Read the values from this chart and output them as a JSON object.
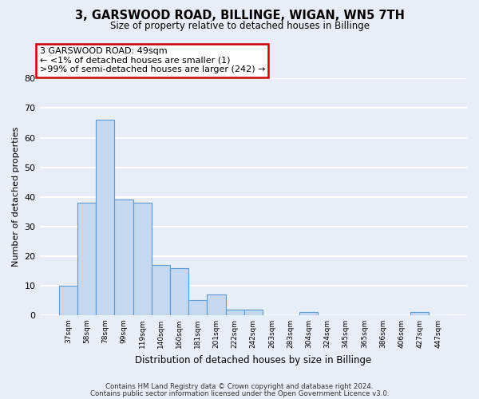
{
  "title": "3, GARSWOOD ROAD, BILLINGE, WIGAN, WN5 7TH",
  "subtitle": "Size of property relative to detached houses in Billinge",
  "xlabel": "Distribution of detached houses by size in Billinge",
  "ylabel": "Number of detached properties",
  "bar_labels": [
    "37sqm",
    "58sqm",
    "78sqm",
    "99sqm",
    "119sqm",
    "140sqm",
    "160sqm",
    "181sqm",
    "201sqm",
    "222sqm",
    "242sqm",
    "263sqm",
    "283sqm",
    "304sqm",
    "324sqm",
    "345sqm",
    "365sqm",
    "386sqm",
    "406sqm",
    "427sqm",
    "447sqm"
  ],
  "bar_values": [
    10,
    38,
    66,
    39,
    38,
    17,
    16,
    5,
    7,
    2,
    2,
    0,
    0,
    1,
    0,
    0,
    0,
    0,
    0,
    1,
    0
  ],
  "bar_color": "#c5d8f0",
  "bar_edge_color": "#5b9bd5",
  "background_color": "#e8eef8",
  "grid_color": "#ffffff",
  "annotation_box_text": [
    "3 GARSWOOD ROAD: 49sqm",
    "← <1% of detached houses are smaller (1)",
    ">99% of semi-detached houses are larger (242) →"
  ],
  "annotation_box_edge_color": "#cc0000",
  "ylim": [
    0,
    80
  ],
  "yticks": [
    0,
    10,
    20,
    30,
    40,
    50,
    60,
    70,
    80
  ],
  "footer_line1": "Contains HM Land Registry data © Crown copyright and database right 2024.",
  "footer_line2": "Contains public sector information licensed under the Open Government Licence v3.0."
}
